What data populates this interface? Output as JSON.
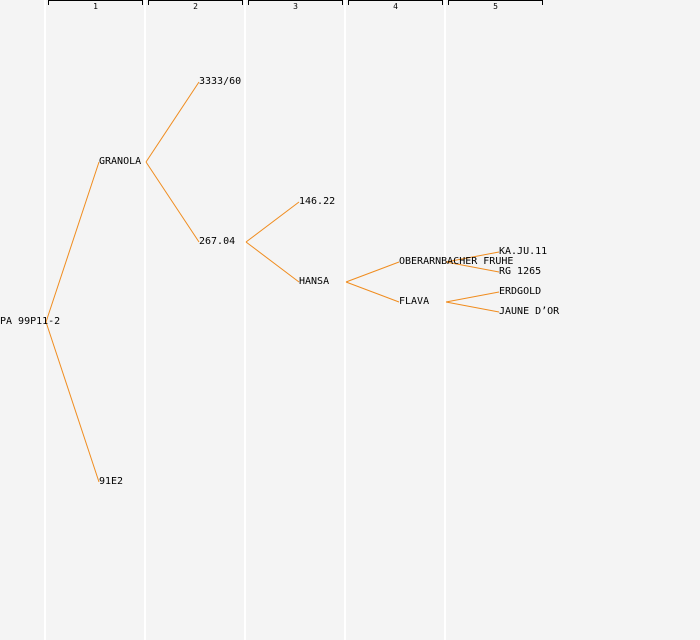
{
  "generations": [
    "1",
    "2",
    "3",
    "4",
    "5"
  ],
  "colors": {
    "link": "#f08c1e",
    "background": "#f4f4f4",
    "column_rule": "#ffffff"
  },
  "nodes": {
    "root": "PA 99P11-2",
    "granola": "GRANOLA",
    "p91e2": "91E2",
    "p3333_60": "3333/60",
    "p267_04": "267.04",
    "p146_22": "146.22",
    "hansa": "HANSA",
    "oberarnbacher": "OBERARNBACHER FRUHE",
    "flava": "FLAVA",
    "kaju11": "KA.JU.11",
    "rg1265": "RG 1265",
    "erdgold": "ERDGOLD",
    "jaune": "JAUNE D’OR"
  }
}
